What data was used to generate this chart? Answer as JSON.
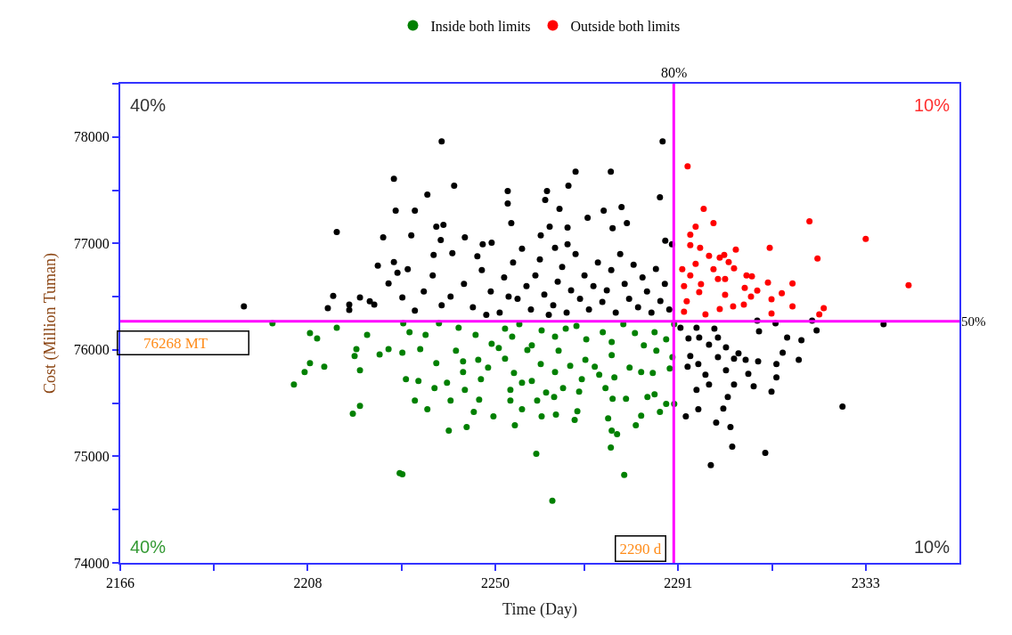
{
  "chart_data": {
    "type": "scatter",
    "xlabel": "Time (Day)",
    "ylabel": "Cost (Million Tuman)",
    "xlim": [
      2166,
      2354
    ],
    "ylim": [
      74000,
      78500
    ],
    "xticks": [
      2166,
      {
        "value": 2187,
        "label": null
      },
      2208,
      {
        "value": 2229,
        "label": null
      },
      2250,
      {
        "value": 2270,
        "label": null
      },
      2291,
      {
        "value": 2312,
        "label": null
      },
      2333
    ],
    "yticks": [
      74000,
      {
        "value": 74500,
        "label": null
      },
      75000,
      {
        "value": 75500,
        "label": null
      },
      76000,
      {
        "value": 76500,
        "label": null
      },
      77000,
      {
        "value": 77500,
        "label": null
      },
      78000,
      {
        "value": 78500,
        "label": null
      }
    ],
    "marker": "circle",
    "legend": "top",
    "ref_lines": [
      {
        "axis": "x",
        "value": 2290,
        "label": "2290 d",
        "color": "#ff00ff"
      },
      {
        "axis": "y",
        "value": 76268,
        "label": "76268 MT",
        "color": "#ff00ff"
      }
    ],
    "annotations": [
      "40%",
      "10%",
      "40%",
      "10%",
      "80%",
      "50%"
    ],
    "series": [
      {
        "name": "Inside both limits",
        "color": "#008000",
        "x": [
          2200.1,
          2208.5,
          2210.1,
          2214.5,
          2221.3,
          2218.9,
          2218.5,
          2224.1,
          2226.1,
          2208.5,
          2207.3,
          2211.7,
          2219.7,
          2204.9,
          2219.7,
          2218.1,
          2228.6,
          2229.2,
          2262.8,
          2259.2,
          2278.9,
          2275.9,
          2277.3,
          2276.1,
          2275.3,
          2281.5,
          2239.6,
          2243.6,
          2254.4,
          2234.8,
          2232.0,
          2240.0,
          2245.2,
          2249.6,
          2256.0,
          2260.4,
          2263.6,
          2267.8,
          2268.4,
          2282.7,
          2286.9,
          2290.1,
          2288.3,
          2276.3,
          2279.3,
          2268.8,
          2263.2,
          2259.4,
          2253.4,
          2246.4,
          2243.2,
          2236.4,
          2239.2,
          2232.8,
          2230.0,
          2246.8,
          2256.0,
          2253.4,
          2261.4,
          2265.2,
          2269.4,
          2274.7,
          2284.1,
          2285.7,
          2236.8,
          2242.8,
          2246.2,
          2242.8,
          2248.4,
          2252.2,
          2254.2,
          2258.2,
          2260.2,
          2263.4,
          2266.8,
          2270.2,
          2272.3,
          2273.3,
          2276.7,
          2280.1,
          2282.7,
          2285.3,
          2289.1,
          2229.2,
          2233.2,
          2241.2,
          2250.8,
          2257.2,
          2264.2,
          2276.1,
          2286.1,
          2289.7,
          2230.8,
          2234.4,
          2237.4,
          2241.8,
          2245.6,
          2249.2,
          2252.2,
          2253.8,
          2255.4,
          2258.2,
          2260.4,
          2263.4,
          2265.8,
          2268.2,
          2270.4,
          2274.1,
          2276.1,
          2278.7,
          2281.3,
          2283.3,
          2285.7,
          2288.3,
          2290.1,
          2229.4
        ],
        "values": [
          76250,
          76158,
          76108,
          76208,
          76142,
          76008,
          75942,
          75958,
          76008,
          75875,
          75792,
          75842,
          75808,
          75675,
          75475,
          75400,
          74842,
          74833,
          74583,
          75025,
          74825,
          75083,
          75208,
          75242,
          75358,
          75292,
          75242,
          75275,
          75292,
          75442,
          75525,
          75525,
          75417,
          75375,
          75442,
          75375,
          75392,
          75342,
          75425,
          75383,
          75417,
          75492,
          75492,
          75542,
          75542,
          75608,
          75558,
          75525,
          75525,
          75533,
          75625,
          75642,
          75692,
          75708,
          75725,
          75725,
          75692,
          75625,
          75600,
          75642,
          75725,
          75642,
          75558,
          75583,
          75875,
          75892,
          75908,
          75792,
          75833,
          75917,
          75783,
          75708,
          75867,
          75792,
          75850,
          75908,
          75842,
          75767,
          75742,
          75833,
          75792,
          75783,
          75825,
          75975,
          76008,
          75992,
          76017,
          76000,
          75992,
          75950,
          75992,
          75933,
          76167,
          76142,
          76250,
          76208,
          76142,
          76058,
          76200,
          76125,
          76242,
          76042,
          76183,
          76125,
          76200,
          76225,
          76100,
          76167,
          76075,
          76242,
          76158,
          76042,
          76167,
          76100,
          76242,
          76250
        ]
      },
      {
        "name": "Outside both limits",
        "color": "#ff0000",
        "x": [
          2293.1,
          2296.7,
          2298.9,
          2294.9,
          2320.4,
          2333.0,
          2342.6,
          2322.2,
          2311.5,
          2303.9,
          2293.7,
          2293.7,
          2295.9,
          2297.9,
          2300.3,
          2301.3,
          2302.3,
          2303.5,
          2298.9,
          2294.9,
          2291.9,
          2293.7,
          2299.9,
          2301.5,
          2306.3,
          2307.5,
          2311.1,
          2316.6,
          2296.1,
          2292.3,
          2305.9,
          2308.7,
          2314.2,
          2295.7,
          2301.5,
          2307.3,
          2311.9,
          2292.9,
          2305.7,
          2303.3,
          2316.6,
          2323.6,
          2300.3,
          2292.3,
          2297.1,
          2311.9,
          2322.6
        ],
        "values": [
          77725,
          77325,
          77192,
          77158,
          77208,
          77042,
          76608,
          76858,
          76958,
          76942,
          77083,
          76983,
          76958,
          76883,
          76867,
          76892,
          76825,
          76767,
          76758,
          76808,
          76758,
          76700,
          76667,
          76667,
          76700,
          76692,
          76633,
          76625,
          76617,
          76600,
          76583,
          76558,
          76533,
          76542,
          76517,
          76500,
          76475,
          76458,
          76425,
          76408,
          76408,
          76392,
          76383,
          76358,
          76333,
          76342,
          76333
        ]
      },
      {
        "color": "#000000",
        "x": [
          2193.7,
          2212.5,
          2213.7,
          2214.5,
          2217.3,
          2217.3,
          2219.7,
          2221.9,
          2222.9,
          2223.7,
          2224.9,
          2226.1,
          2227.3,
          2227.7,
          2227.3,
          2228.1,
          2238.0,
          2240.8,
          2234.8,
          2232.0,
          2236.8,
          2238.4,
          2231.2,
          2237.8,
          2243.2,
          2247.2,
          2249.2,
          2236.2,
          2240.4,
          2230.4,
          2229.2,
          2252.8,
          2252.8,
          2253.6,
          2261.6,
          2261.2,
          2266.4,
          2268.0,
          2275.9,
          2264.4,
          2270.7,
          2274.3,
          2278.3,
          2287.5,
          2286.9,
          2276.3,
          2279.5,
          2262.2,
          2266.2,
          2260.2,
          2263.4,
          2266.2,
          2288.1,
          2289.6,
          2240,
          2243,
          2245,
          2247,
          2249,
          2251,
          2252,
          2254,
          2255,
          2257,
          2258,
          2259,
          2260,
          2261,
          2263,
          2264,
          2265,
          2266,
          2267,
          2268,
          2269,
          2270,
          2271,
          2272,
          2273,
          2274,
          2275,
          2276,
          2277,
          2278,
          2279,
          2280,
          2281,
          2282,
          2283,
          2284,
          2285,
          2286,
          2287,
          2288,
          2289,
          2234,
          2236,
          2238,
          2232,
          2246,
          2256,
          2262,
          2253,
          2248,
          2337.0,
          2327.8,
          2310.5,
          2298.3,
          2303.1,
          2302.7,
          2299.5,
          2292.7,
          2295.5,
          2301.1,
          2302.1,
          2295.1,
          2297.9,
          2303.5,
          2307.9,
          2311.9,
          2313.0,
          2306.7,
          2297.1,
          2301.7,
          2313.0,
          2308.9,
          2318.0,
          2306.1,
          2303.5,
          2293.1,
          2295.5,
          2299.9,
          2314.4,
          2304.5,
          2293.7,
          2297.9,
          2301.7,
          2299.9,
          2315.4,
          2318.6,
          2293.3,
          2295.7,
          2309.1,
          2299.1,
          2322.0,
          2321.0,
          2312.8,
          2308.7,
          2295.1,
          2291.5
        ],
        "values": [
          76408,
          76392,
          76508,
          77108,
          76425,
          76375,
          76492,
          76458,
          76425,
          76792,
          77058,
          76625,
          77608,
          77308,
          76825,
          76725,
          77958,
          77542,
          77458,
          77308,
          77158,
          77175,
          77075,
          77033,
          77058,
          76992,
          77008,
          76892,
          76908,
          76758,
          76492,
          77492,
          77375,
          77192,
          77492,
          77408,
          77542,
          77675,
          77675,
          77325,
          77242,
          77308,
          77342,
          77958,
          77433,
          77142,
          77192,
          77158,
          77150,
          77075,
          76958,
          76992,
          77025,
          76992,
          76500,
          76620,
          76400,
          76750,
          76550,
          76350,
          76680,
          76820,
          76480,
          76600,
          76380,
          76700,
          76850,
          76520,
          76420,
          76640,
          76780,
          76350,
          76560,
          76900,
          76480,
          76700,
          76380,
          76600,
          76820,
          76450,
          76560,
          76750,
          76350,
          76900,
          76620,
          76480,
          76800,
          76400,
          76680,
          76550,
          76350,
          76760,
          76460,
          76620,
          76380,
          76550,
          76700,
          76420,
          76370,
          76880,
          76950,
          76330,
          76500,
          76330,
          76242,
          75467,
          75033,
          74917,
          75092,
          75275,
          75317,
          75375,
          75442,
          75450,
          75558,
          75625,
          75675,
          75675,
          75658,
          75608,
          75742,
          75775,
          75767,
          75808,
          75867,
          75892,
          75908,
          75908,
          75917,
          75842,
          75867,
          75933,
          75975,
          75967,
          75942,
          76050,
          76025,
          76117,
          76117,
          76092,
          76108,
          76117,
          76175,
          76200,
          76183,
          76275,
          76250,
          76275,
          76208,
          76208
        ]
      }
    ]
  }
}
